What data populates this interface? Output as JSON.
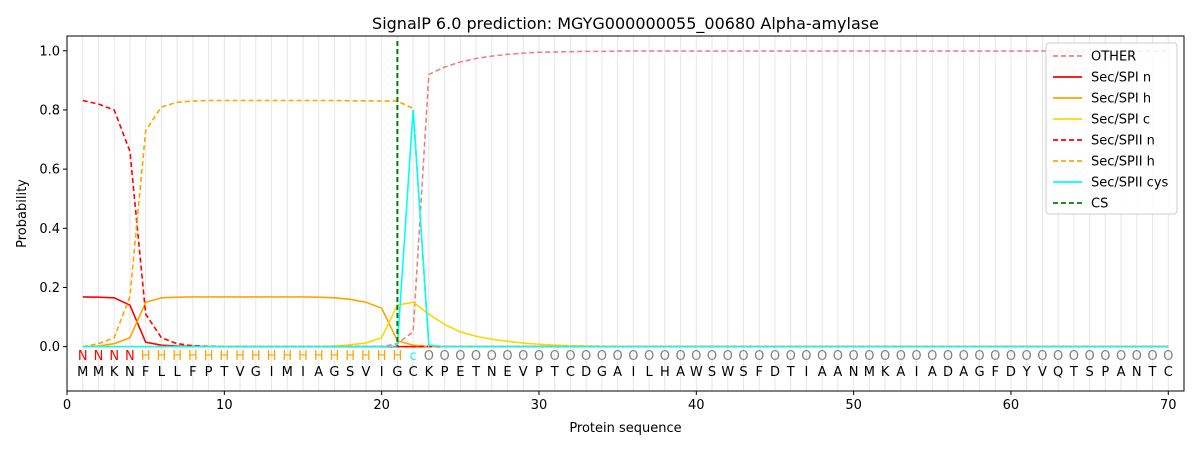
{
  "chart_data": {
    "type": "line",
    "title": "SignalP 6.0 prediction: MGYG000000055_00680 Alpha-amylase",
    "xlabel": "Protein sequence",
    "ylabel": "Probability",
    "xlim": [
      0,
      71
    ],
    "ylim": [
      -0.15,
      1.05
    ],
    "x_ticks": [
      0,
      10,
      20,
      30,
      40,
      50,
      60,
      70
    ],
    "y_ticks": [
      0.0,
      0.2,
      0.4,
      0.6,
      0.8,
      1.0
    ],
    "legend_position": "top-right",
    "sequence": [
      "M",
      "M",
      "K",
      "N",
      "F",
      "L",
      "L",
      "F",
      "P",
      "T",
      "V",
      "G",
      "I",
      "M",
      "I",
      "A",
      "G",
      "S",
      "V",
      "I",
      "G",
      "C",
      "K",
      "P",
      "E",
      "T",
      "N",
      "E",
      "V",
      "P",
      "T",
      "C",
      "D",
      "G",
      "A",
      "I",
      "L",
      "H",
      "A",
      "W",
      "S",
      "W",
      "S",
      "F",
      "D",
      "T",
      "I",
      "A",
      "A",
      "N",
      "M",
      "K",
      "A",
      "I",
      "A",
      "D",
      "A",
      "G",
      "F",
      "D",
      "Y",
      "V",
      "Q",
      "T",
      "S",
      "P",
      "A",
      "N",
      "T",
      "C"
    ],
    "labels": [
      "N",
      "N",
      "N",
      "N",
      "H",
      "H",
      "H",
      "H",
      "H",
      "H",
      "H",
      "H",
      "H",
      "H",
      "H",
      "H",
      "H",
      "H",
      "H",
      "H",
      "H",
      "c",
      "O",
      "O",
      "O",
      "O",
      "O",
      "O",
      "O",
      "O",
      "O",
      "O",
      "O",
      "O",
      "O",
      "O",
      "O",
      "O",
      "O",
      "O",
      "O",
      "O",
      "O",
      "O",
      "O",
      "O",
      "O",
      "O",
      "O",
      "O",
      "O",
      "O",
      "O",
      "O",
      "O",
      "O",
      "O",
      "O",
      "O",
      "O",
      "O",
      "O",
      "O",
      "O",
      "O",
      "O",
      "O",
      "O",
      "O",
      "O"
    ],
    "label_colors": {
      "N": "#ff0000",
      "H": "#ffa500",
      "c": "#00ffff",
      "O": "#808080"
    },
    "cs_position": 21,
    "series": [
      {
        "name": "OTHER",
        "color": "#f08080",
        "dash": true,
        "values": [
          0.0,
          0.0,
          0.0,
          0.0,
          0.0,
          0.0,
          0.0,
          0.0,
          0.0,
          0.0,
          0.0,
          0.0,
          0.0,
          0.0,
          0.0,
          0.0,
          0.0,
          0.0,
          0.0,
          0.0,
          0.01,
          0.05,
          0.92,
          0.945,
          0.962,
          0.974,
          0.982,
          0.988,
          0.992,
          0.995,
          0.996,
          0.997,
          0.998,
          0.998,
          0.999,
          0.999,
          0.999,
          0.999,
          0.999,
          0.999,
          0.999,
          0.999,
          0.999,
          0.999,
          0.999,
          0.999,
          0.999,
          0.999,
          0.999,
          0.999,
          0.999,
          0.999,
          0.999,
          0.999,
          0.999,
          0.999,
          0.999,
          0.999,
          0.999,
          0.999,
          0.999,
          0.999,
          0.999,
          0.999,
          0.999,
          0.999,
          0.999,
          0.999,
          0.999,
          0.999
        ]
      },
      {
        "name": "Sec/SPI n",
        "color": "#ff0000",
        "dash": false,
        "values": [
          0.168,
          0.167,
          0.165,
          0.14,
          0.015,
          0.005,
          0.002,
          0.001,
          0.0,
          0.0,
          0.0,
          0.0,
          0.0,
          0.0,
          0.0,
          0.0,
          0.0,
          0.0,
          0.0,
          0.0,
          0.0,
          0.0,
          0.0,
          0.0,
          0.0,
          0.0,
          0.0,
          0.0,
          0.0,
          0.0,
          0.0,
          0.0,
          0.0,
          0.0,
          0.0,
          0.0,
          0.0,
          0.0,
          0.0,
          0.0,
          0.0,
          0.0,
          0.0,
          0.0,
          0.0,
          0.0,
          0.0,
          0.0,
          0.0,
          0.0,
          0.0,
          0.0,
          0.0,
          0.0,
          0.0,
          0.0,
          0.0,
          0.0,
          0.0,
          0.0,
          0.0,
          0.0,
          0.0,
          0.0,
          0.0,
          0.0,
          0.0,
          0.0,
          0.0,
          0.0
        ]
      },
      {
        "name": "Sec/SPI h",
        "color": "#ffa500",
        "dash": false,
        "values": [
          0.0,
          0.002,
          0.01,
          0.03,
          0.15,
          0.165,
          0.167,
          0.168,
          0.168,
          0.168,
          0.168,
          0.168,
          0.168,
          0.168,
          0.168,
          0.167,
          0.165,
          0.16,
          0.15,
          0.13,
          0.02,
          0.005,
          0.001,
          0.0,
          0.0,
          0.0,
          0.0,
          0.0,
          0.0,
          0.0,
          0.0,
          0.0,
          0.0,
          0.0,
          0.0,
          0.0,
          0.0,
          0.0,
          0.0,
          0.0,
          0.0,
          0.0,
          0.0,
          0.0,
          0.0,
          0.0,
          0.0,
          0.0,
          0.0,
          0.0,
          0.0,
          0.0,
          0.0,
          0.0,
          0.0,
          0.0,
          0.0,
          0.0,
          0.0,
          0.0,
          0.0,
          0.0,
          0.0,
          0.0,
          0.0,
          0.0,
          0.0,
          0.0,
          0.0,
          0.0
        ]
      },
      {
        "name": "Sec/SPI c",
        "color": "#ffd700",
        "dash": false,
        "values": [
          0.0,
          0.0,
          0.0,
          0.0,
          0.0,
          0.0,
          0.0,
          0.0,
          0.0,
          0.0,
          0.0,
          0.0,
          0.0,
          0.0,
          0.0,
          0.0,
          0.002,
          0.006,
          0.012,
          0.03,
          0.14,
          0.15,
          0.11,
          0.075,
          0.05,
          0.035,
          0.025,
          0.018,
          0.012,
          0.008,
          0.005,
          0.003,
          0.002,
          0.001,
          0.001,
          0.0,
          0.0,
          0.0,
          0.0,
          0.0,
          0.0,
          0.0,
          0.0,
          0.0,
          0.0,
          0.0,
          0.0,
          0.0,
          0.0,
          0.0,
          0.0,
          0.0,
          0.0,
          0.0,
          0.0,
          0.0,
          0.0,
          0.0,
          0.0,
          0.0,
          0.0,
          0.0,
          0.0,
          0.0,
          0.0,
          0.0,
          0.0,
          0.0,
          0.0,
          0.0
        ]
      },
      {
        "name": "Sec/SPII n",
        "color": "#ff0000",
        "dash": true,
        "values": [
          0.832,
          0.82,
          0.8,
          0.66,
          0.11,
          0.03,
          0.01,
          0.003,
          0.001,
          0.0,
          0.0,
          0.0,
          0.0,
          0.0,
          0.0,
          0.0,
          0.0,
          0.0,
          0.0,
          0.0,
          0.0,
          0.0,
          0.0,
          0.0,
          0.0,
          0.0,
          0.0,
          0.0,
          0.0,
          0.0,
          0.0,
          0.0,
          0.0,
          0.0,
          0.0,
          0.0,
          0.0,
          0.0,
          0.0,
          0.0,
          0.0,
          0.0,
          0.0,
          0.0,
          0.0,
          0.0,
          0.0,
          0.0,
          0.0,
          0.0,
          0.0,
          0.0,
          0.0,
          0.0,
          0.0,
          0.0,
          0.0,
          0.0,
          0.0,
          0.0,
          0.0,
          0.0,
          0.0,
          0.0,
          0.0,
          0.0,
          0.0,
          0.0,
          0.0,
          0.0
        ]
      },
      {
        "name": "Sec/SPII h",
        "color": "#ffa500",
        "dash": true,
        "values": [
          0.0,
          0.01,
          0.03,
          0.17,
          0.73,
          0.81,
          0.826,
          0.83,
          0.832,
          0.832,
          0.832,
          0.832,
          0.832,
          0.832,
          0.832,
          0.832,
          0.832,
          0.831,
          0.831,
          0.83,
          0.83,
          0.805,
          0.0,
          0.0,
          0.0,
          0.0,
          0.0,
          0.0,
          0.0,
          0.0,
          0.0,
          0.0,
          0.0,
          0.0,
          0.0,
          0.0,
          0.0,
          0.0,
          0.0,
          0.0,
          0.0,
          0.0,
          0.0,
          0.0,
          0.0,
          0.0,
          0.0,
          0.0,
          0.0,
          0.0,
          0.0,
          0.0,
          0.0,
          0.0,
          0.0,
          0.0,
          0.0,
          0.0,
          0.0,
          0.0,
          0.0,
          0.0,
          0.0,
          0.0,
          0.0,
          0.0,
          0.0,
          0.0,
          0.0,
          0.0
        ]
      },
      {
        "name": "Sec/SPII cys",
        "color": "#00ffff",
        "dash": false,
        "values": [
          0.0,
          0.0,
          0.0,
          0.0,
          0.0,
          0.0,
          0.0,
          0.0,
          0.0,
          0.0,
          0.0,
          0.0,
          0.0,
          0.0,
          0.0,
          0.0,
          0.0,
          0.0,
          0.0,
          0.0,
          0.002,
          0.8,
          0.005,
          0.0,
          0.0,
          0.0,
          0.0,
          0.0,
          0.0,
          0.0,
          0.0,
          0.0,
          0.0,
          0.0,
          0.0,
          0.0,
          0.0,
          0.0,
          0.0,
          0.0,
          0.0,
          0.0,
          0.0,
          0.0,
          0.0,
          0.0,
          0.0,
          0.0,
          0.0,
          0.0,
          0.0,
          0.0,
          0.0,
          0.0,
          0.0,
          0.0,
          0.0,
          0.0,
          0.0,
          0.0,
          0.0,
          0.0,
          0.0,
          0.0,
          0.0,
          0.0,
          0.0,
          0.0,
          0.0,
          0.0
        ]
      }
    ],
    "cs_series": {
      "name": "CS",
      "color": "#008000"
    }
  }
}
